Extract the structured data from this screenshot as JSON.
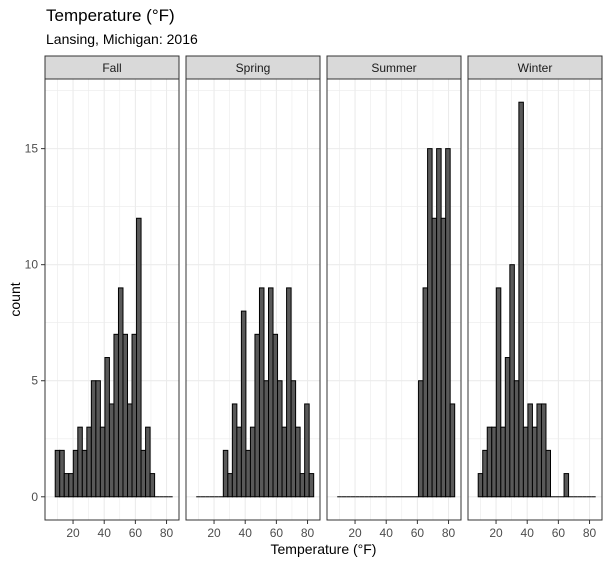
{
  "chart_data": {
    "type": "bar",
    "title": "Temperature (°F)",
    "subtitle": "Lansing, Michigan: 2016",
    "xlabel": "Temperature (°F)",
    "ylabel": "count",
    "x_ticks": [
      20,
      40,
      60,
      80
    ],
    "y_ticks": [
      0,
      5,
      10,
      15
    ],
    "xlim": [
      2,
      88
    ],
    "ylim": [
      -1,
      18
    ],
    "bin_width": 2.9,
    "bin_centers": [
      10,
      12.9,
      15.8,
      18.7,
      21.6,
      24.5,
      27.4,
      30.3,
      33.2,
      36.1,
      39,
      41.9,
      44.8,
      47.7,
      50.6,
      53.5,
      56.4,
      59.3,
      62.2,
      65.1,
      68,
      70.9,
      73.8,
      76.7,
      79.6,
      82.5
    ],
    "facets": [
      {
        "name": "Fall",
        "counts": [
          2,
          2,
          1,
          1,
          2,
          3,
          2,
          3,
          5,
          5,
          3,
          6,
          4,
          7,
          9,
          7,
          4,
          7,
          12,
          2,
          3,
          1,
          0,
          0,
          0,
          0
        ]
      },
      {
        "name": "Spring",
        "counts": [
          0,
          0,
          0,
          0,
          0,
          0,
          2,
          1,
          4,
          3,
          8,
          2,
          3,
          7,
          9,
          5,
          9,
          7,
          5,
          3,
          9,
          5,
          3,
          1,
          4,
          1
        ]
      },
      {
        "name": "Summer",
        "counts": [
          0,
          0,
          0,
          0,
          0,
          0,
          0,
          0,
          0,
          0,
          0,
          0,
          0,
          0,
          0,
          0,
          0,
          0,
          5,
          9,
          15,
          12,
          15,
          12,
          15,
          4
        ]
      },
      {
        "name": "Winter",
        "counts": [
          1,
          2,
          3,
          3,
          9,
          3,
          6,
          10,
          5,
          17,
          3,
          4,
          3,
          4,
          4,
          2,
          0,
          0,
          0,
          1,
          0,
          0,
          0,
          0,
          0,
          0
        ]
      }
    ],
    "grid": true,
    "colors": {
      "bar_fill": "#595959",
      "bar_stroke": "#000000",
      "strip_fill": "#d9d9d9",
      "grid": "#ebebeb",
      "panel_border": "#333333"
    }
  }
}
